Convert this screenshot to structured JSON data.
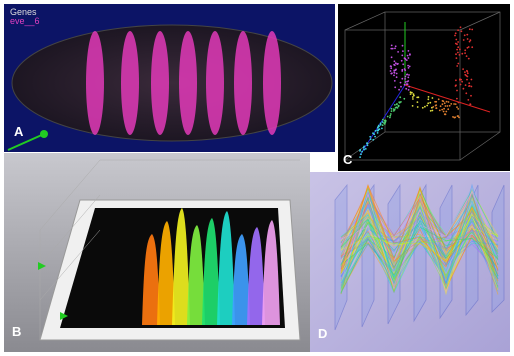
{
  "panels": [
    {
      "letter": "A",
      "legend": {
        "title": "Genes",
        "entry": "eve__6"
      }
    },
    {
      "letter": "B"
    },
    {
      "letter": "C"
    },
    {
      "letter": "D"
    }
  ]
}
